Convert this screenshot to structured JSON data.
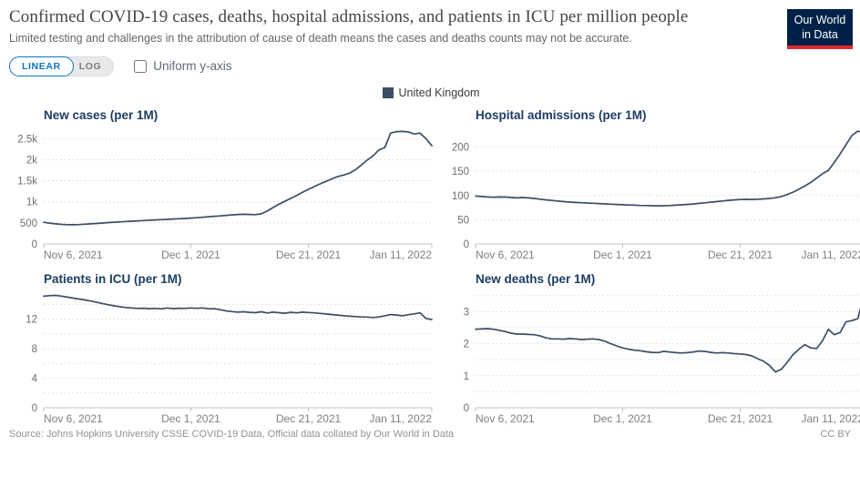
{
  "header": {
    "title": "Confirmed COVID-19 cases, deaths, hospital admissions, and patients in ICU per million people",
    "subtitle": "Limited testing and challenges in the attribution of cause of death means the cases and deaths counts may not be accurate.",
    "logo": {
      "line1": "Our World",
      "line2": "in Data",
      "bg_color": "#002147",
      "stripe_color": "#dc2a30"
    }
  },
  "controls": {
    "linear_label": "LINEAR",
    "log_label": "LOG",
    "active_scale": "LINEAR",
    "uniform_label": "Uniform y-axis",
    "uniform_checked": false,
    "accent_blue": "#0b76c1"
  },
  "legend": {
    "label": "United Kingdom",
    "color": "#3C4E66"
  },
  "footer": {
    "source": "Source: Johns Hopkins University CSSE COVID-19 Data, Official data collated by Our World in Data",
    "license": "CC BY"
  },
  "chart_data": [
    {
      "type": "line",
      "title": "New cases (per 1M)",
      "series_name": "United Kingdom",
      "color": "#3C4E66",
      "x_start": "Nov 6, 2021",
      "x_end": "Jan 11, 2022",
      "frequency": "daily",
      "x_ticks": [
        {
          "label": "Nov 6, 2021",
          "position": 0
        },
        {
          "label": "Dec 1, 2021",
          "position": 0.379
        },
        {
          "label": "Dec 21, 2021",
          "position": 0.682
        },
        {
          "label": "Jan 11, 2022",
          "position": 1
        }
      ],
      "ylim": [
        0,
        2700
      ],
      "y_ticks": [
        {
          "value": 0,
          "label": "0"
        },
        {
          "value": 500,
          "label": "500"
        },
        {
          "value": 1000,
          "label": "1k"
        },
        {
          "value": 1500,
          "label": "1.5k"
        },
        {
          "value": 2000,
          "label": "2k"
        },
        {
          "value": 2500,
          "label": "2.5k"
        }
      ],
      "gridlines": [
        500,
        1000,
        1500,
        2000,
        2500
      ],
      "values": [
        515,
        495,
        478,
        465,
        457,
        455,
        460,
        468,
        477,
        487,
        497,
        507,
        516,
        525,
        533,
        541,
        549,
        556,
        563,
        570,
        577,
        584,
        591,
        598,
        605,
        613,
        622,
        633,
        645,
        657,
        665,
        678,
        690,
        700,
        705,
        700,
        695,
        715,
        780,
        865,
        945,
        1010,
        1080,
        1150,
        1225,
        1295,
        1360,
        1425,
        1487,
        1545,
        1600,
        1635,
        1680,
        1760,
        1870,
        1990,
        2090,
        2230,
        2290,
        2630,
        2665,
        2670,
        2660,
        2610,
        2630,
        2500,
        2330
      ]
    },
    {
      "type": "line",
      "title": "Hospital admissions (per 1M)",
      "series_name": "United Kingdom",
      "color": "#3C4E66",
      "x_start": "Nov 6, 2021",
      "x_end": "Jan 11, 2022",
      "frequency": "daily",
      "x_ticks": [
        {
          "label": "Nov 6, 2021",
          "position": 0
        },
        {
          "label": "Dec 1, 2021",
          "position": 0.379
        },
        {
          "label": "Dec 21, 2021",
          "position": 0.682
        },
        {
          "label": "Jan 11, 2022",
          "position": 1
        }
      ],
      "ylim": [
        0,
        235
      ],
      "y_ticks": [
        {
          "value": 0,
          "label": "0"
        },
        {
          "value": 50,
          "label": "50"
        },
        {
          "value": 100,
          "label": "100"
        },
        {
          "value": 150,
          "label": "150"
        },
        {
          "value": 200,
          "label": "200"
        }
      ],
      "gridlines": [
        50,
        100,
        150,
        200
      ],
      "values": [
        99,
        98,
        97,
        96.5,
        97,
        96.8,
        96,
        95.2,
        95.8,
        95.2,
        94,
        92.5,
        91,
        89.8,
        88.5,
        87.5,
        86.5,
        85.8,
        85.2,
        84.6,
        84,
        83.4,
        82.8,
        82.2,
        81.6,
        81,
        80.5,
        80,
        79.6,
        79.3,
        79,
        78.8,
        79,
        79.4,
        80,
        80.8,
        81.6,
        82.6,
        83.8,
        85,
        86.2,
        87.5,
        88.8,
        90,
        91,
        91.8,
        92.2,
        92,
        92.3,
        93,
        94,
        95.5,
        98,
        102,
        107,
        113,
        120,
        127,
        136,
        145,
        152,
        168,
        186,
        205,
        224,
        233,
        230
      ]
    },
    {
      "type": "line",
      "title": "Patients in ICU (per 1M)",
      "series_name": "United Kingdom",
      "color": "#3C4E66",
      "x_start": "Nov 6, 2021",
      "x_end": "Jan 11, 2022",
      "frequency": "daily",
      "x_ticks": [
        {
          "label": "Nov 6, 2021",
          "position": 0
        },
        {
          "label": "Dec 1, 2021",
          "position": 0.379
        },
        {
          "label": "Dec 21, 2021",
          "position": 0.682
        },
        {
          "label": "Jan 11, 2022",
          "position": 1
        }
      ],
      "ylim": [
        0,
        15.4
      ],
      "y_ticks": [
        {
          "value": 0,
          "label": "0"
        },
        {
          "value": 4,
          "label": "4"
        },
        {
          "value": 8,
          "label": "8"
        },
        {
          "value": 12,
          "label": "12"
        }
      ],
      "gridlines": [
        2,
        4,
        6,
        8,
        10,
        12,
        14
      ],
      "values": [
        15.1,
        15.18,
        15.22,
        15.12,
        14.98,
        14.85,
        14.72,
        14.6,
        14.45,
        14.28,
        14.12,
        13.95,
        13.8,
        13.68,
        13.58,
        13.5,
        13.45,
        13.48,
        13.42,
        13.45,
        13.38,
        13.52,
        13.42,
        13.48,
        13.45,
        13.52,
        13.46,
        13.52,
        13.4,
        13.42,
        13.28,
        13.12,
        13.02,
        12.95,
        13.0,
        12.92,
        12.88,
        13.0,
        12.84,
        12.95,
        12.88,
        12.8,
        12.92,
        12.85,
        12.95,
        12.9,
        12.85,
        12.78,
        12.7,
        12.62,
        12.55,
        12.45,
        12.4,
        12.35,
        12.3,
        12.28,
        12.22,
        12.3,
        12.45,
        12.62,
        12.55,
        12.45,
        12.6,
        12.72,
        12.85,
        12.1,
        11.95
      ]
    },
    {
      "type": "line",
      "title": "New deaths (per 1M)",
      "series_name": "United Kingdom",
      "color": "#3C4E66",
      "x_start": "Nov 6, 2021",
      "x_end": "Jan 11, 2022",
      "frequency": "daily",
      "x_ticks": [
        {
          "label": "Nov 6, 2021",
          "position": 0
        },
        {
          "label": "Dec 1, 2021",
          "position": 0.379
        },
        {
          "label": "Dec 21, 2021",
          "position": 0.682
        },
        {
          "label": "Jan 11, 2022",
          "position": 1
        }
      ],
      "ylim": [
        0,
        3.55
      ],
      "y_ticks": [
        {
          "value": 0,
          "label": "0"
        },
        {
          "value": 1,
          "label": "1"
        },
        {
          "value": 2,
          "label": "2"
        },
        {
          "value": 3,
          "label": "3"
        }
      ],
      "gridlines": [
        0.5,
        1,
        1.5,
        2,
        2.5,
        3,
        3.5
      ],
      "values": [
        2.45,
        2.46,
        2.47,
        2.45,
        2.42,
        2.38,
        2.33,
        2.3,
        2.3,
        2.29,
        2.28,
        2.24,
        2.18,
        2.15,
        2.15,
        2.14,
        2.16,
        2.15,
        2.13,
        2.14,
        2.15,
        2.13,
        2.08,
        2.0,
        1.93,
        1.87,
        1.83,
        1.8,
        1.78,
        1.75,
        1.73,
        1.72,
        1.76,
        1.74,
        1.72,
        1.71,
        1.72,
        1.74,
        1.77,
        1.76,
        1.73,
        1.71,
        1.72,
        1.71,
        1.69,
        1.68,
        1.66,
        1.62,
        1.53,
        1.45,
        1.32,
        1.12,
        1.2,
        1.42,
        1.66,
        1.83,
        1.97,
        1.87,
        1.85,
        2.09,
        2.45,
        2.28,
        2.35,
        2.68,
        2.72,
        2.78,
        3.46
      ]
    }
  ]
}
